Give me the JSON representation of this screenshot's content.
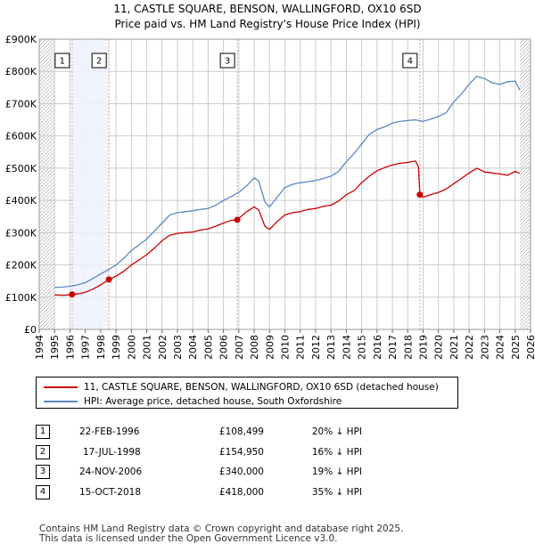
{
  "chart_data": {
    "type": "line",
    "title": "11, CASTLE SQUARE, BENSON, WALLINGFORD, OX10 6SD",
    "subtitle": "Price paid vs. HM Land Registry's House Price Index (HPI)",
    "xlabel": "",
    "ylabel": "",
    "xlim": [
      1994,
      2026
    ],
    "ylim": [
      0,
      900000
    ],
    "x_ticks": [
      1994,
      1995,
      1996,
      1997,
      1998,
      1999,
      2000,
      2001,
      2002,
      2003,
      2004,
      2005,
      2006,
      2007,
      2008,
      2009,
      2010,
      2011,
      2012,
      2013,
      2014,
      2015,
      2016,
      2017,
      2018,
      2019,
      2020,
      2021,
      2022,
      2023,
      2024,
      2025,
      2026
    ],
    "y_ticks": [
      {
        "value": 0,
        "label": "£0"
      },
      {
        "value": 100000,
        "label": "£100K"
      },
      {
        "value": 200000,
        "label": "£200K"
      },
      {
        "value": 300000,
        "label": "£300K"
      },
      {
        "value": 400000,
        "label": "£400K"
      },
      {
        "value": 500000,
        "label": "£500K"
      },
      {
        "value": 600000,
        "label": "£600K"
      },
      {
        "value": 700000,
        "label": "£700K"
      },
      {
        "value": 800000,
        "label": "£800K"
      },
      {
        "value": 900000,
        "label": "£900K"
      }
    ],
    "grid": true,
    "colors": {
      "property": "#cc0000",
      "hpi": "#5b87c6",
      "shade": "#eef2fb",
      "grid": "#cccccc",
      "vline": "#e39b9b"
    },
    "series": [
      {
        "name": "11, CASTLE SQUARE, BENSON, WALLINGFORD, OX10 6SD (detached house)",
        "key": "property",
        "x": [
          1995.0,
          1995.5,
          1996.0,
          1996.14,
          1996.5,
          1997.0,
          1997.5,
          1998.0,
          1998.54,
          1999.0,
          1999.5,
          2000.0,
          2000.5,
          2001.0,
          2001.5,
          2002.0,
          2002.5,
          2003.0,
          2003.5,
          2004.0,
          2004.5,
          2005.0,
          2005.5,
          2006.0,
          2006.5,
          2006.9,
          2007.5,
          2008.0,
          2008.3,
          2008.7,
          2009.0,
          2009.5,
          2010.0,
          2010.5,
          2011.0,
          2011.5,
          2012.0,
          2012.5,
          2013.0,
          2013.5,
          2014.0,
          2014.5,
          2015.0,
          2015.5,
          2016.0,
          2016.5,
          2017.0,
          2017.5,
          2018.0,
          2018.5,
          2018.7,
          2018.79,
          2019.0,
          2019.5,
          2020.0,
          2020.5,
          2021.0,
          2021.5,
          2022.0,
          2022.5,
          2023.0,
          2023.5,
          2024.0,
          2024.5,
          2025.0,
          2025.3
        ],
        "values": [
          107000,
          106000,
          107000,
          108499,
          110000,
          115000,
          125000,
          138000,
          154950,
          165000,
          180000,
          200000,
          215000,
          232000,
          252000,
          275000,
          292000,
          298000,
          300000,
          302000,
          308000,
          312000,
          320000,
          330000,
          338000,
          340000,
          365000,
          380000,
          370000,
          320000,
          310000,
          335000,
          355000,
          362000,
          365000,
          372000,
          375000,
          382000,
          385000,
          398000,
          418000,
          430000,
          455000,
          475000,
          492000,
          502000,
          510000,
          515000,
          518000,
          522000,
          505000,
          418000,
          410000,
          418000,
          425000,
          435000,
          452000,
          468000,
          485000,
          500000,
          488000,
          485000,
          482000,
          478000,
          490000,
          484000
        ]
      },
      {
        "name": "HPI: Average price, detached house, South Oxfordshire",
        "key": "hpi",
        "x": [
          1995.0,
          1995.5,
          1996.0,
          1996.5,
          1997.0,
          1997.5,
          1998.0,
          1998.5,
          1999.0,
          1999.5,
          2000.0,
          2000.5,
          2001.0,
          2001.5,
          2002.0,
          2002.5,
          2003.0,
          2003.5,
          2004.0,
          2004.5,
          2005.0,
          2005.5,
          2006.0,
          2006.5,
          2007.0,
          2007.5,
          2008.0,
          2008.3,
          2008.7,
          2009.0,
          2009.5,
          2010.0,
          2010.5,
          2011.0,
          2011.5,
          2012.0,
          2012.5,
          2013.0,
          2013.5,
          2014.0,
          2014.5,
          2015.0,
          2015.5,
          2016.0,
          2016.5,
          2017.0,
          2017.5,
          2018.0,
          2018.5,
          2019.0,
          2019.5,
          2020.0,
          2020.5,
          2021.0,
          2021.5,
          2022.0,
          2022.5,
          2023.0,
          2023.5,
          2024.0,
          2024.5,
          2025.0,
          2025.3
        ],
        "values": [
          130000,
          131000,
          134000,
          138000,
          145000,
          158000,
          172000,
          185000,
          200000,
          220000,
          245000,
          262000,
          280000,
          305000,
          330000,
          355000,
          362000,
          365000,
          368000,
          372000,
          375000,
          385000,
          400000,
          412000,
          425000,
          445000,
          470000,
          460000,
          395000,
          380000,
          410000,
          440000,
          450000,
          455000,
          458000,
          462000,
          468000,
          475000,
          490000,
          520000,
          545000,
          575000,
          605000,
          620000,
          628000,
          640000,
          645000,
          648000,
          650000,
          645000,
          652000,
          660000,
          672000,
          705000,
          730000,
          760000,
          785000,
          778000,
          765000,
          760000,
          768000,
          770000,
          742000
        ]
      }
    ],
    "sales": [
      {
        "label": "1",
        "x": 1996.14,
        "value": 108499
      },
      {
        "label": "2",
        "x": 1998.54,
        "value": 154950
      },
      {
        "label": "3",
        "x": 2006.9,
        "value": 340000
      },
      {
        "label": "4",
        "x": 2018.79,
        "value": 418000
      }
    ],
    "shaded_ranges": [
      [
        1996.14,
        1998.54
      ]
    ],
    "hatched_ranges": [
      [
        1994,
        1995
      ],
      [
        2025.3,
        2026
      ]
    ]
  },
  "legend": [
    {
      "label": "11, CASTLE SQUARE, BENSON, WALLINGFORD, OX10 6SD (detached house)",
      "color": "#cc0000"
    },
    {
      "label": "HPI: Average price, detached house, South Oxfordshire",
      "color": "#5b87c6"
    }
  ],
  "transactions": [
    {
      "num": "1",
      "date": "22-FEB-1996",
      "price": "£108,499",
      "delta": "20% ↓ HPI"
    },
    {
      "num": "2",
      "date": "17-JUL-1998",
      "price": "£154,950",
      "delta": "16% ↓ HPI"
    },
    {
      "num": "3",
      "date": "24-NOV-2006",
      "price": "£340,000",
      "delta": "19% ↓ HPI"
    },
    {
      "num": "4",
      "date": "15-OCT-2018",
      "price": "£418,000",
      "delta": "35% ↓ HPI"
    }
  ],
  "footer": {
    "line1": "Contains HM Land Registry data © Crown copyright and database right 2025.",
    "line2": "This data is licensed under the Open Government Licence v3.0."
  }
}
